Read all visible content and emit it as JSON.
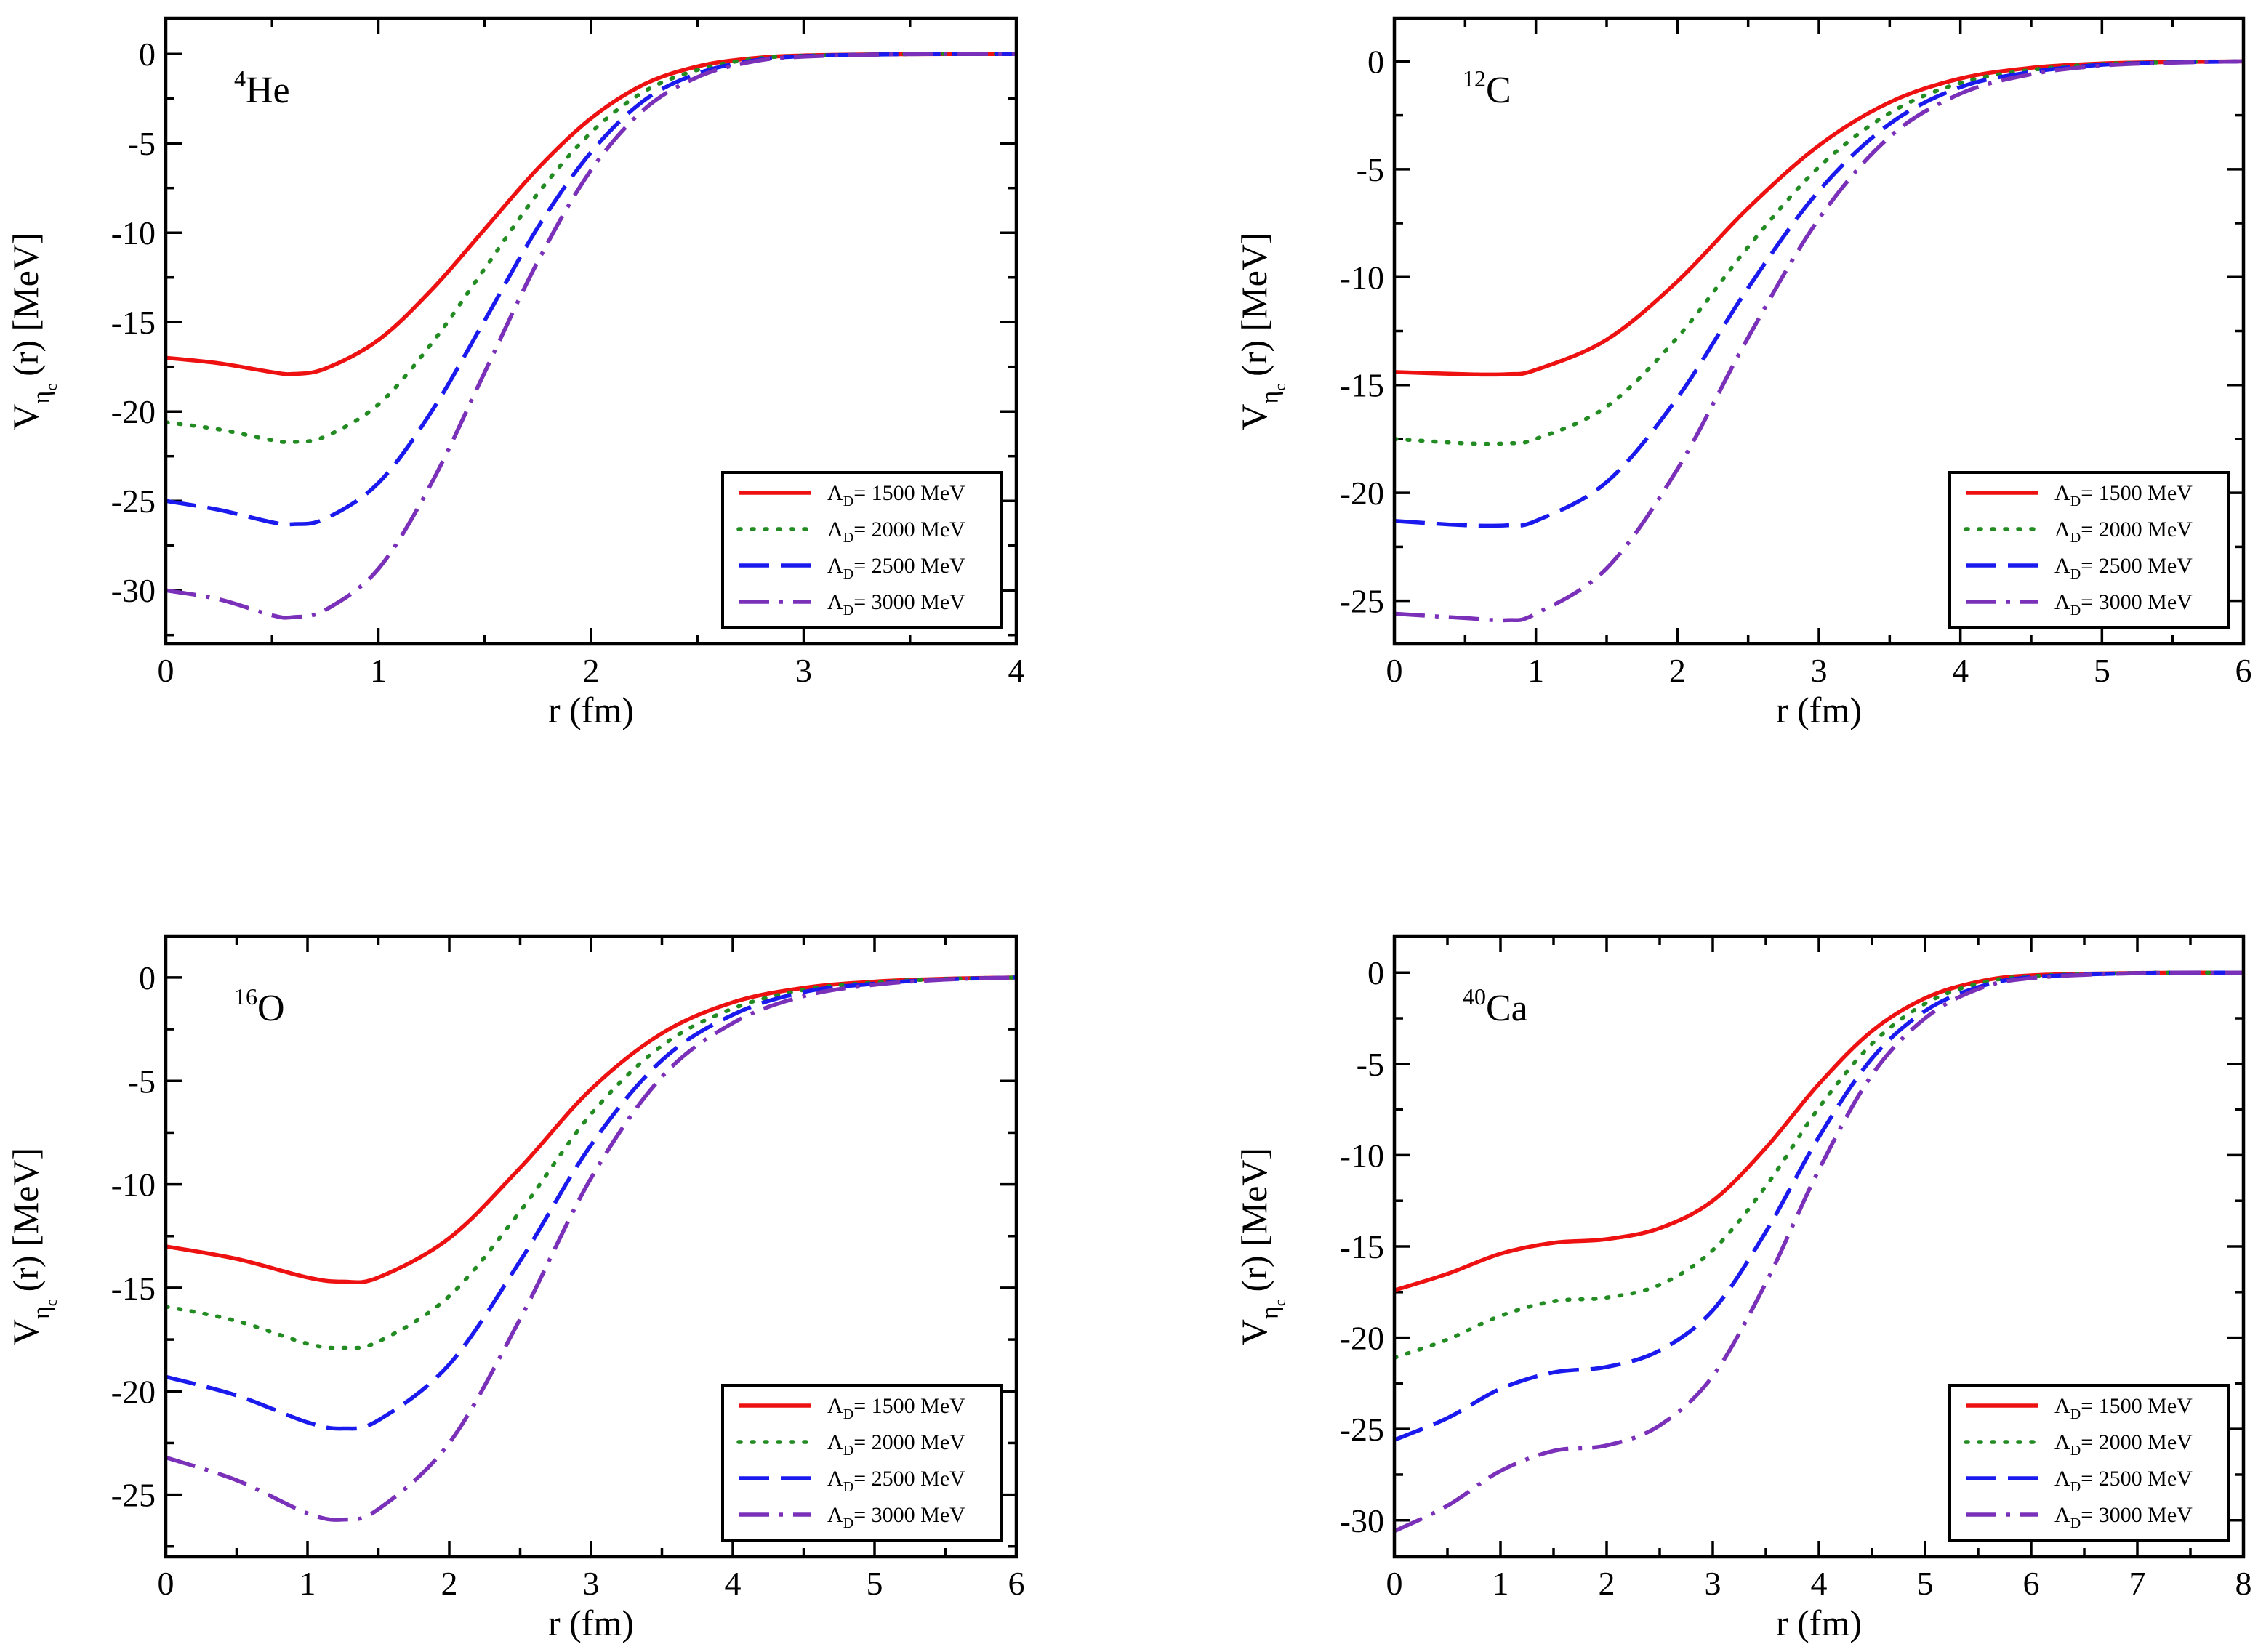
{
  "colors": {
    "lambda_1500": "#ee1111",
    "lambda_2000": "#228b22",
    "lambda_2500": "#1a1aee",
    "lambda_3000": "#7a30b8"
  },
  "legend_entries": [
    {
      "symbol": "Λ",
      "sub": "D",
      "text": "= 1500 MeV",
      "style": "solid",
      "color_key": "lambda_1500"
    },
    {
      "symbol": "Λ",
      "sub": "D",
      "text": "= 2000 MeV",
      "style": "dotted",
      "color_key": "lambda_2000"
    },
    {
      "symbol": "Λ",
      "sub": "D",
      "text": "= 2500 MeV",
      "style": "dashed",
      "color_key": "lambda_2500"
    },
    {
      "symbol": "Λ",
      "sub": "D",
      "text": "= 3000 MeV",
      "style": "dashdot",
      "color_key": "lambda_3000"
    }
  ],
  "chart_data": [
    {
      "type": "line",
      "nucleus": {
        "mass": "4",
        "element": "He"
      },
      "xlabel": "r (fm)",
      "ylabel": {
        "main": "V",
        "sub": "η",
        "subsub": "c",
        "rest": "(r)  [MeV]"
      },
      "xlim": [
        0,
        4
      ],
      "ylim": [
        -33,
        2
      ],
      "xticks": [
        0,
        1,
        2,
        3,
        4
      ],
      "yticks": [
        0,
        -5,
        -10,
        -15,
        -20,
        -25,
        -30
      ],
      "legend_position": "bottom-right",
      "x": [
        0,
        0.25,
        0.5,
        0.6,
        0.75,
        1.0,
        1.25,
        1.5,
        1.75,
        2.0,
        2.25,
        2.5,
        2.75,
        3.0,
        3.5,
        4.0
      ],
      "series": [
        {
          "legend_index": 0,
          "values": [
            -17.0,
            -17.3,
            -17.8,
            -17.9,
            -17.6,
            -16.0,
            -13.2,
            -9.8,
            -6.4,
            -3.6,
            -1.7,
            -0.7,
            -0.25,
            -0.08,
            -0.01,
            0
          ]
        },
        {
          "legend_index": 1,
          "values": [
            -20.6,
            -21.0,
            -21.6,
            -21.7,
            -21.4,
            -19.6,
            -16.2,
            -12.0,
            -7.8,
            -4.4,
            -2.1,
            -0.9,
            -0.3,
            -0.1,
            -0.01,
            0
          ]
        },
        {
          "legend_index": 2,
          "values": [
            -25.0,
            -25.5,
            -26.2,
            -26.3,
            -26.0,
            -24.0,
            -20.0,
            -14.9,
            -9.7,
            -5.5,
            -2.6,
            -1.1,
            -0.4,
            -0.12,
            -0.01,
            0
          ]
        },
        {
          "legend_index": 3,
          "values": [
            -30.0,
            -30.5,
            -31.4,
            -31.5,
            -31.1,
            -28.8,
            -24.0,
            -17.8,
            -11.6,
            -6.5,
            -3.1,
            -1.3,
            -0.45,
            -0.15,
            -0.01,
            0
          ]
        }
      ]
    },
    {
      "type": "line",
      "nucleus": {
        "mass": "12",
        "element": "C"
      },
      "xlabel": "r (fm)",
      "ylabel": {
        "main": "V",
        "sub": "η",
        "subsub": "c",
        "rest": "(r)  [MeV]"
      },
      "xlim": [
        0,
        6
      ],
      "ylim": [
        -27,
        2
      ],
      "xticks": [
        0,
        1,
        2,
        3,
        4,
        5,
        6
      ],
      "yticks": [
        0,
        -5,
        -10,
        -15,
        -20,
        -25
      ],
      "legend_position": "bottom-right",
      "x": [
        0,
        0.5,
        0.8,
        1.0,
        1.5,
        2.0,
        2.5,
        3.0,
        3.5,
        4.0,
        4.5,
        5.0,
        5.5,
        6.0
      ],
      "series": [
        {
          "legend_index": 0,
          "values": [
            -14.4,
            -14.5,
            -14.5,
            -14.3,
            -12.9,
            -10.2,
            -6.8,
            -3.9,
            -1.9,
            -0.8,
            -0.3,
            -0.1,
            -0.03,
            0
          ]
        },
        {
          "legend_index": 1,
          "values": [
            -17.5,
            -17.7,
            -17.7,
            -17.5,
            -16.0,
            -12.8,
            -8.6,
            -4.9,
            -2.4,
            -1.0,
            -0.4,
            -0.13,
            -0.04,
            0
          ]
        },
        {
          "legend_index": 2,
          "values": [
            -21.3,
            -21.5,
            -21.5,
            -21.3,
            -19.5,
            -15.6,
            -10.5,
            -6.0,
            -2.9,
            -1.2,
            -0.5,
            -0.16,
            -0.05,
            0
          ]
        },
        {
          "legend_index": 3,
          "values": [
            -25.6,
            -25.8,
            -25.9,
            -25.6,
            -23.5,
            -18.9,
            -12.8,
            -7.3,
            -3.5,
            -1.5,
            -0.6,
            -0.2,
            -0.06,
            0
          ]
        }
      ]
    },
    {
      "type": "line",
      "nucleus": {
        "mass": "16",
        "element": "O"
      },
      "xlabel": "r (fm)",
      "ylabel": {
        "main": "V",
        "sub": "η",
        "subsub": "c",
        "rest": "(r)  [MeV]"
      },
      "xlim": [
        0,
        6
      ],
      "ylim": [
        -28,
        2
      ],
      "xticks": [
        0,
        1,
        2,
        3,
        4,
        5,
        6
      ],
      "yticks": [
        0,
        -5,
        -10,
        -15,
        -20,
        -25
      ],
      "legend_position": "bottom-right",
      "x": [
        0,
        0.5,
        1.0,
        1.25,
        1.5,
        2.0,
        2.5,
        3.0,
        3.5,
        4.0,
        4.5,
        5.0,
        5.5,
        6.0
      ],
      "series": [
        {
          "legend_index": 0,
          "values": [
            -13.0,
            -13.6,
            -14.5,
            -14.7,
            -14.5,
            -12.6,
            -9.2,
            -5.4,
            -2.7,
            -1.2,
            -0.5,
            -0.2,
            -0.06,
            0
          ]
        },
        {
          "legend_index": 1,
          "values": [
            -15.9,
            -16.6,
            -17.7,
            -17.9,
            -17.6,
            -15.4,
            -11.3,
            -6.6,
            -3.3,
            -1.5,
            -0.6,
            -0.24,
            -0.07,
            0
          ]
        },
        {
          "legend_index": 2,
          "values": [
            -19.3,
            -20.2,
            -21.5,
            -21.8,
            -21.4,
            -18.7,
            -13.7,
            -8.1,
            -4.0,
            -1.8,
            -0.7,
            -0.3,
            -0.09,
            0
          ]
        },
        {
          "legend_index": 3,
          "values": [
            -23.2,
            -24.3,
            -25.9,
            -26.2,
            -25.7,
            -22.5,
            -16.5,
            -9.7,
            -4.8,
            -2.2,
            -0.9,
            -0.35,
            -0.1,
            0
          ]
        }
      ]
    },
    {
      "type": "line",
      "nucleus": {
        "mass": "40",
        "element": "Ca"
      },
      "xlabel": "r (fm)",
      "ylabel": {
        "main": "V",
        "sub": "η",
        "subsub": "c",
        "rest": "(r)  [MeV]"
      },
      "xlim": [
        0,
        8
      ],
      "ylim": [
        -32,
        2
      ],
      "xticks": [
        0,
        1,
        2,
        3,
        4,
        5,
        6,
        7,
        8
      ],
      "yticks": [
        0,
        -5,
        -10,
        -15,
        -20,
        -25,
        -30
      ],
      "legend_position": "bottom-right",
      "x": [
        0,
        0.5,
        1.0,
        1.5,
        2.0,
        2.5,
        3.0,
        3.5,
        4.0,
        4.5,
        5.0,
        5.5,
        6.0,
        7.0,
        8.0
      ],
      "series": [
        {
          "legend_index": 0,
          "values": [
            -17.4,
            -16.5,
            -15.4,
            -14.8,
            -14.6,
            -14.0,
            -12.5,
            -9.6,
            -6.1,
            -3.2,
            -1.4,
            -0.5,
            -0.15,
            -0.02,
            0
          ]
        },
        {
          "legend_index": 1,
          "values": [
            -21.1,
            -20.1,
            -18.8,
            -18.0,
            -17.8,
            -17.1,
            -15.2,
            -11.7,
            -7.4,
            -3.9,
            -1.7,
            -0.6,
            -0.2,
            -0.02,
            0
          ]
        },
        {
          "legend_index": 2,
          "values": [
            -25.6,
            -24.4,
            -22.8,
            -21.9,
            -21.6,
            -20.7,
            -18.5,
            -14.2,
            -9.0,
            -4.7,
            -2.1,
            -0.8,
            -0.25,
            -0.03,
            0
          ]
        },
        {
          "legend_index": 3,
          "values": [
            -30.6,
            -29.2,
            -27.3,
            -26.2,
            -25.9,
            -24.8,
            -22.1,
            -17.0,
            -10.8,
            -5.6,
            -2.5,
            -0.9,
            -0.3,
            -0.03,
            0
          ]
        }
      ]
    }
  ]
}
